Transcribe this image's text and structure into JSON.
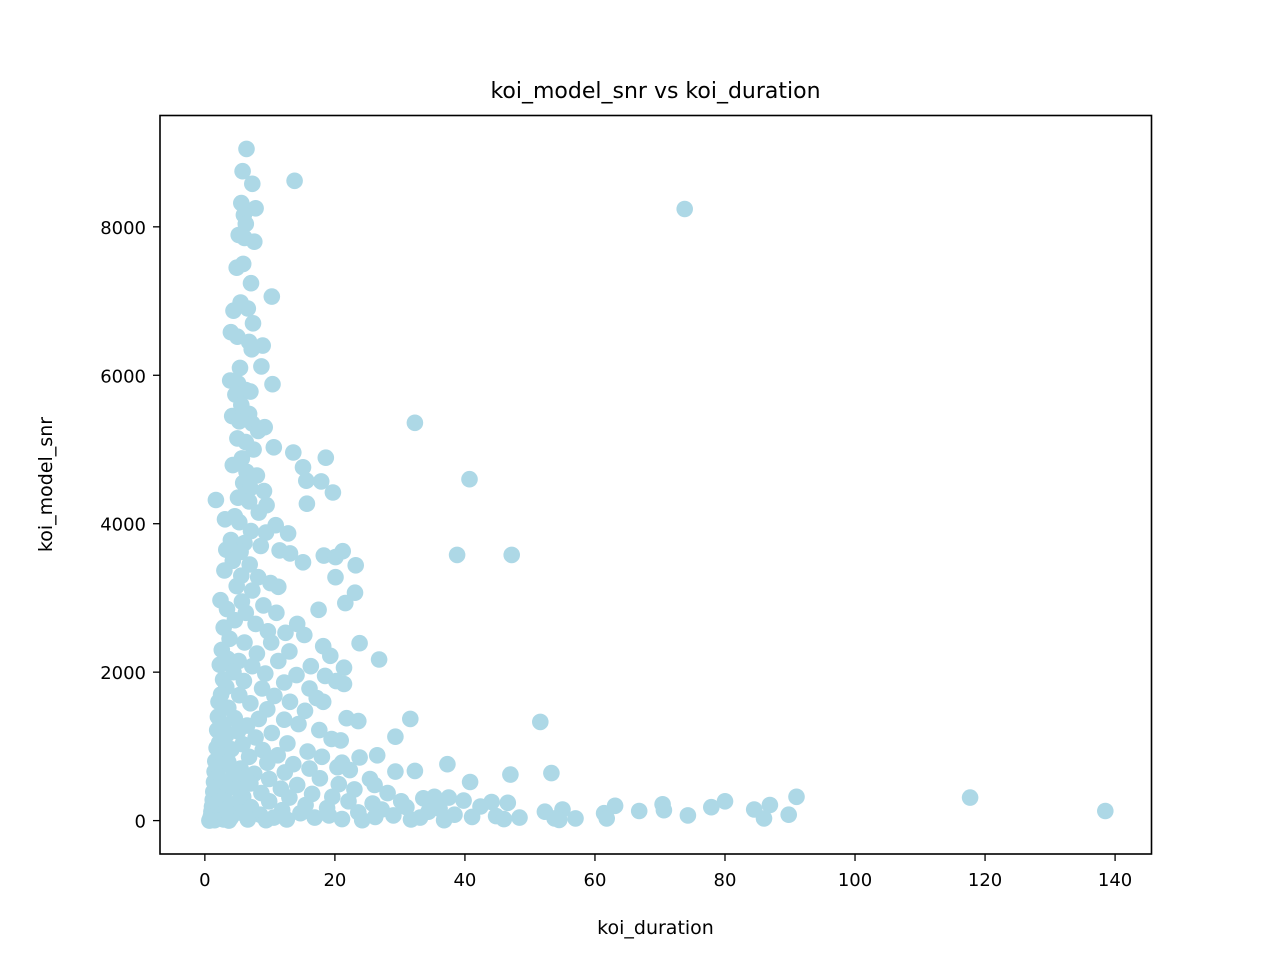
{
  "chart_data": {
    "type": "scatter",
    "title": "koi_model_snr vs koi_duration",
    "xlabel": "koi_duration",
    "ylabel": "koi_model_snr",
    "xlim": [
      -6.9,
      145.6
    ],
    "ylim": [
      -450,
      9500
    ],
    "xticks": [
      0,
      20,
      40,
      60,
      80,
      100,
      120,
      140
    ],
    "yticks": [
      0,
      2000,
      4000,
      6000,
      8000
    ],
    "grid": false,
    "legend": "none",
    "marker_color": "#add8e6",
    "points": [
      [
        6.4,
        9050
      ],
      [
        5.8,
        8750
      ],
      [
        13.8,
        8620
      ],
      [
        7.3,
        8580
      ],
      [
        5.6,
        8320
      ],
      [
        7.8,
        8250
      ],
      [
        73.8,
        8240
      ],
      [
        6.0,
        8160
      ],
      [
        6.3,
        8040
      ],
      [
        5.2,
        7890
      ],
      [
        6.1,
        7850
      ],
      [
        7.6,
        7800
      ],
      [
        4.9,
        7450
      ],
      [
        5.9,
        7500
      ],
      [
        7.1,
        7240
      ],
      [
        10.3,
        7060
      ],
      [
        5.5,
        6980
      ],
      [
        6.6,
        6900
      ],
      [
        4.4,
        6870
      ],
      [
        7.4,
        6700
      ],
      [
        4.0,
        6580
      ],
      [
        5.0,
        6520
      ],
      [
        6.8,
        6450
      ],
      [
        8.9,
        6400
      ],
      [
        7.2,
        6350
      ],
      [
        5.4,
        6100
      ],
      [
        8.7,
        6120
      ],
      [
        3.9,
        5930
      ],
      [
        5.1,
        5890
      ],
      [
        10.4,
        5880
      ],
      [
        6.3,
        5800
      ],
      [
        4.7,
        5740
      ],
      [
        7.0,
        5780
      ],
      [
        5.6,
        5600
      ],
      [
        4.2,
        5450
      ],
      [
        6.0,
        5500
      ],
      [
        5.3,
        5380
      ],
      [
        6.8,
        5480
      ],
      [
        7.3,
        5350
      ],
      [
        8.2,
        5250
      ],
      [
        5.0,
        5150
      ],
      [
        9.2,
        5300
      ],
      [
        32.3,
        5360
      ],
      [
        6.3,
        5100
      ],
      [
        7.5,
        5000
      ],
      [
        10.6,
        5030
      ],
      [
        13.6,
        4960
      ],
      [
        18.6,
        4890
      ],
      [
        5.7,
        4880
      ],
      [
        4.3,
        4790
      ],
      [
        6.4,
        4700
      ],
      [
        8.0,
        4650
      ],
      [
        15.1,
        4760
      ],
      [
        40.7,
        4600
      ],
      [
        5.9,
        4550
      ],
      [
        7.0,
        4480
      ],
      [
        9.1,
        4440
      ],
      [
        17.9,
        4570
      ],
      [
        15.6,
        4580
      ],
      [
        19.7,
        4420
      ],
      [
        5.1,
        4350
      ],
      [
        1.7,
        4320
      ],
      [
        6.8,
        4300
      ],
      [
        9.5,
        4250
      ],
      [
        15.7,
        4270
      ],
      [
        4.6,
        4100
      ],
      [
        8.3,
        4150
      ],
      [
        3.1,
        4060
      ],
      [
        5.3,
        4020
      ],
      [
        10.9,
        3980
      ],
      [
        7.1,
        3900
      ],
      [
        9.4,
        3880
      ],
      [
        12.8,
        3870
      ],
      [
        4.0,
        3780
      ],
      [
        6.1,
        3740
      ],
      [
        8.6,
        3700
      ],
      [
        3.3,
        3650
      ],
      [
        5.5,
        3620
      ],
      [
        11.5,
        3640
      ],
      [
        13.1,
        3600
      ],
      [
        18.3,
        3570
      ],
      [
        20.1,
        3550
      ],
      [
        21.2,
        3630
      ],
      [
        38.8,
        3580
      ],
      [
        47.2,
        3580
      ],
      [
        4.3,
        3500
      ],
      [
        6.9,
        3450
      ],
      [
        15.1,
        3480
      ],
      [
        23.2,
        3440
      ],
      [
        3.0,
        3370
      ],
      [
        5.6,
        3300
      ],
      [
        8.2,
        3280
      ],
      [
        10.1,
        3200
      ],
      [
        20.1,
        3280
      ],
      [
        4.9,
        3160
      ],
      [
        7.3,
        3100
      ],
      [
        11.3,
        3150
      ],
      [
        23.1,
        3070
      ],
      [
        2.4,
        2970
      ],
      [
        5.7,
        2950
      ],
      [
        9.0,
        2900
      ],
      [
        21.6,
        2930
      ],
      [
        3.4,
        2850
      ],
      [
        6.3,
        2800
      ],
      [
        11.0,
        2800
      ],
      [
        17.5,
        2840
      ],
      [
        4.6,
        2700
      ],
      [
        7.8,
        2650
      ],
      [
        14.2,
        2650
      ],
      [
        2.9,
        2600
      ],
      [
        9.7,
        2550
      ],
      [
        12.4,
        2530
      ],
      [
        15.3,
        2500
      ],
      [
        3.8,
        2450
      ],
      [
        6.1,
        2400
      ],
      [
        10.2,
        2400
      ],
      [
        23.8,
        2390
      ],
      [
        18.2,
        2350
      ],
      [
        2.6,
        2300
      ],
      [
        8.0,
        2250
      ],
      [
        13.0,
        2280
      ],
      [
        19.3,
        2220
      ],
      [
        3.5,
        2180
      ],
      [
        5.2,
        2150
      ],
      [
        11.3,
        2150
      ],
      [
        26.8,
        2170
      ],
      [
        2.3,
        2100
      ],
      [
        7.3,
        2080
      ],
      [
        16.3,
        2080
      ],
      [
        21.4,
        2060
      ],
      [
        4.4,
        2000
      ],
      [
        9.3,
        1980
      ],
      [
        14.1,
        1960
      ],
      [
        18.5,
        1950
      ],
      [
        2.8,
        1900
      ],
      [
        6.0,
        1880
      ],
      [
        12.2,
        1860
      ],
      [
        20.2,
        1880
      ],
      [
        21.4,
        1840
      ],
      [
        3.3,
        1800
      ],
      [
        8.8,
        1780
      ],
      [
        16.1,
        1780
      ],
      [
        2.5,
        1700
      ],
      [
        5.3,
        1690
      ],
      [
        10.7,
        1680
      ],
      [
        17.2,
        1650
      ],
      [
        2.1,
        1600
      ],
      [
        7.0,
        1580
      ],
      [
        13.1,
        1600
      ],
      [
        18.2,
        1600
      ],
      [
        3.6,
        1520
      ],
      [
        9.6,
        1500
      ],
      [
        15.4,
        1480
      ],
      [
        2.0,
        1400
      ],
      [
        4.6,
        1380
      ],
      [
        8.3,
        1370
      ],
      [
        12.2,
        1360
      ],
      [
        21.8,
        1380
      ],
      [
        23.6,
        1340
      ],
      [
        31.6,
        1370
      ],
      [
        51.6,
        1330
      ],
      [
        2.9,
        1300
      ],
      [
        6.5,
        1280
      ],
      [
        14.4,
        1300
      ],
      [
        1.9,
        1220
      ],
      [
        5.1,
        1200
      ],
      [
        10.3,
        1180
      ],
      [
        17.6,
        1220
      ],
      [
        3.3,
        1150
      ],
      [
        7.8,
        1120
      ],
      [
        19.5,
        1100
      ],
      [
        29.3,
        1130
      ],
      [
        2.2,
        1050
      ],
      [
        5.8,
        1030
      ],
      [
        12.7,
        1040
      ],
      [
        20.9,
        1080
      ],
      [
        1.8,
        980
      ],
      [
        4.1,
        960
      ],
      [
        8.9,
        950
      ],
      [
        15.8,
        930
      ],
      [
        2.5,
        880
      ],
      [
        6.8,
        860
      ],
      [
        11.2,
        880
      ],
      [
        18.0,
        860
      ],
      [
        23.8,
        850
      ],
      [
        26.5,
        880
      ],
      [
        1.6,
        800
      ],
      [
        3.6,
        790
      ],
      [
        9.6,
        780
      ],
      [
        13.6,
        760
      ],
      [
        21.1,
        780
      ],
      [
        37.3,
        760
      ],
      [
        2.2,
        720
      ],
      [
        5.5,
        700
      ],
      [
        16.1,
        700
      ],
      [
        20.4,
        720
      ],
      [
        1.5,
        660
      ],
      [
        4.4,
        640
      ],
      [
        7.6,
        630
      ],
      [
        12.3,
        650
      ],
      [
        22.3,
        680
      ],
      [
        29.3,
        660
      ],
      [
        32.3,
        670
      ],
      [
        47.0,
        620
      ],
      [
        53.3,
        640
      ],
      [
        2.0,
        590
      ],
      [
        6.2,
        570
      ],
      [
        9.9,
        560
      ],
      [
        17.7,
        570
      ],
      [
        25.4,
        560
      ],
      [
        40.8,
        520
      ],
      [
        1.4,
        520
      ],
      [
        3.5,
        500
      ],
      [
        7.0,
        500
      ],
      [
        14.2,
        480
      ],
      [
        20.6,
        490
      ],
      [
        26.1,
        480
      ],
      [
        1.9,
        450
      ],
      [
        4.9,
        430
      ],
      [
        11.7,
        430
      ],
      [
        23.0,
        420
      ],
      [
        1.3,
        390
      ],
      [
        3.0,
        380
      ],
      [
        8.7,
        370
      ],
      [
        16.5,
        360
      ],
      [
        28.1,
        370
      ],
      [
        1.7,
        330
      ],
      [
        5.9,
        320
      ],
      [
        13.0,
        310
      ],
      [
        19.6,
        320
      ],
      [
        33.6,
        300
      ],
      [
        35.3,
        320
      ],
      [
        37.5,
        310
      ],
      [
        91.0,
        320
      ],
      [
        117.7,
        310
      ],
      [
        1.2,
        280
      ],
      [
        2.7,
        270
      ],
      [
        9.9,
        260
      ],
      [
        22.1,
        260
      ],
      [
        30.2,
        260
      ],
      [
        39.8,
        270
      ],
      [
        44.1,
        250
      ],
      [
        80.0,
        260
      ],
      [
        1.6,
        230
      ],
      [
        4.3,
        220
      ],
      [
        15.5,
        210
      ],
      [
        25.8,
        230
      ],
      [
        46.6,
        240
      ],
      [
        63.1,
        200
      ],
      [
        70.4,
        220
      ],
      [
        86.9,
        210
      ],
      [
        1.1,
        190
      ],
      [
        7.1,
        180
      ],
      [
        18.8,
        170
      ],
      [
        31.0,
        180
      ],
      [
        42.4,
        190
      ],
      [
        77.9,
        180
      ],
      [
        3.3,
        150
      ],
      [
        11.9,
        140
      ],
      [
        27.2,
        150
      ],
      [
        36.1,
        160
      ],
      [
        55.0,
        150
      ],
      [
        66.8,
        130
      ],
      [
        70.6,
        140
      ],
      [
        84.5,
        150
      ],
      [
        138.5,
        130
      ],
      [
        1.0,
        120
      ],
      [
        5.3,
        110
      ],
      [
        14.7,
        100
      ],
      [
        23.6,
        110
      ],
      [
        34.4,
        120
      ],
      [
        52.3,
        120
      ],
      [
        61.4,
        100
      ],
      [
        2.1,
        80
      ],
      [
        8.5,
        80
      ],
      [
        19.1,
        70
      ],
      [
        29.0,
        70
      ],
      [
        38.4,
        80
      ],
      [
        44.8,
        60
      ],
      [
        74.3,
        70
      ],
      [
        89.8,
        80
      ],
      [
        0.9,
        50
      ],
      [
        4.0,
        40
      ],
      [
        10.6,
        40
      ],
      [
        16.9,
        40
      ],
      [
        26.2,
        50
      ],
      [
        33.1,
        40
      ],
      [
        41.1,
        50
      ],
      [
        48.4,
        40
      ],
      [
        53.8,
        30
      ],
      [
        57.0,
        30
      ],
      [
        61.8,
        30
      ],
      [
        86.0,
        30
      ],
      [
        0.8,
        20
      ],
      [
        2.9,
        15
      ],
      [
        6.6,
        15
      ],
      [
        12.6,
        15
      ],
      [
        21.1,
        20
      ],
      [
        31.7,
        15
      ],
      [
        46.0,
        20
      ],
      [
        54.5,
        10
      ],
      [
        1.5,
        5
      ],
      [
        0.7,
        0
      ],
      [
        3.7,
        0
      ],
      [
        9.4,
        5
      ],
      [
        24.2,
        5
      ],
      [
        36.8,
        5
      ]
    ]
  }
}
